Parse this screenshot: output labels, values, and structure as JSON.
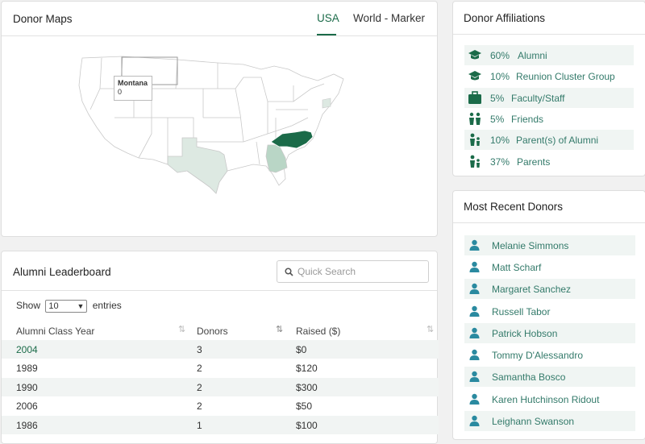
{
  "maps": {
    "title": "Donor Maps",
    "tabs": [
      "USA",
      "World - Marker"
    ],
    "tooltip": {
      "state": "Montana",
      "value": "0"
    },
    "colors": {
      "high": "#1b6b49",
      "mid": "#b9d6c6",
      "low": "#dde9e2",
      "none": "#ffffff"
    }
  },
  "leaderboard": {
    "title": "Alumni Leaderboard",
    "search_placeholder": "Quick Search",
    "show_label": "Show",
    "entries_value": "10",
    "entries_label": "entries",
    "columns": [
      "Alumni Class Year",
      "Donors",
      "Raised ($)"
    ],
    "rows": [
      [
        "2004",
        "3",
        "$0"
      ],
      [
        "1989",
        "2",
        "$120"
      ],
      [
        "1990",
        "2",
        "$300"
      ],
      [
        "2006",
        "2",
        "$50"
      ],
      [
        "1986",
        "1",
        "$100"
      ]
    ]
  },
  "affiliations": {
    "title": "Donor Affiliations",
    "items": [
      {
        "pct": "60%",
        "label": "Alumni",
        "icon": "graduation-cap-icon"
      },
      {
        "pct": "10%",
        "label": "Reunion Cluster Group",
        "icon": "graduation-cap-icon"
      },
      {
        "pct": "5%",
        "label": "Faculty/Staff",
        "icon": "briefcase-icon"
      },
      {
        "pct": "5%",
        "label": "Friends",
        "icon": "friends-icon"
      },
      {
        "pct": "10%",
        "label": "Parent(s) of Alumni",
        "icon": "parent-child-icon"
      },
      {
        "pct": "37%",
        "label": "Parents",
        "icon": "parent-child-icon"
      }
    ]
  },
  "recent": {
    "title": "Most Recent Donors",
    "donors": [
      "Melanie Simmons",
      "Matt Scharf",
      "Margaret Sanchez",
      "Russell Tabor",
      "Patrick Hobson",
      "Tommy D'Alessandro",
      "Samantha Bosco",
      "Karen Hutchinson Ridout",
      "Leighann Swanson"
    ]
  }
}
